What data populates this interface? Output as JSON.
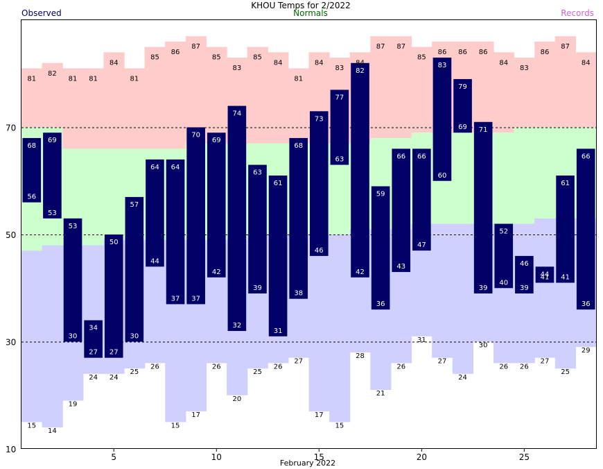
{
  "chart_data": {
    "type": "bar",
    "title": "KHOU Temps for 2/2022",
    "xlabel": "February 2022",
    "legend": {
      "observed": "Observed",
      "normals": "Normals",
      "records": "Records"
    },
    "colors": {
      "record_band": "#ffcccc",
      "normal_band": "#ccffcc",
      "low_band": "#d0d0ff",
      "observed_bar": "#000066",
      "observed_text": "#000066",
      "normals_text": "#006600",
      "records_text": "#cc66cc",
      "gridline": "#000000"
    },
    "ylim": [
      10,
      90
    ],
    "yticks": [
      10,
      30,
      50,
      70
    ],
    "grid": "dashed at 30, 50, 70",
    "xticks": [
      5,
      10,
      15,
      20,
      25
    ],
    "days": [
      1,
      2,
      3,
      4,
      5,
      6,
      7,
      8,
      9,
      10,
      11,
      12,
      13,
      14,
      15,
      16,
      17,
      18,
      19,
      20,
      21,
      22,
      23,
      24,
      25,
      26,
      27,
      28
    ],
    "record_high": [
      81,
      82,
      81,
      81,
      84,
      81,
      85,
      86,
      87,
      85,
      83,
      85,
      84,
      81,
      84,
      83,
      84,
      87,
      87,
      85,
      86,
      86,
      86,
      84,
      83,
      86,
      87,
      84
    ],
    "normal_high": [
      70,
      70,
      66,
      66,
      66,
      66,
      66,
      66,
      67,
      67,
      67,
      67,
      67,
      67,
      67,
      67,
      67,
      68,
      68,
      69,
      69,
      69,
      69,
      69,
      70,
      70,
      70,
      70
    ],
    "normal_low": [
      47,
      48,
      48,
      48,
      49,
      49,
      49,
      49,
      49,
      49,
      49,
      50,
      50,
      50,
      50,
      50,
      51,
      51,
      51,
      52,
      52,
      52,
      52,
      52,
      52,
      53,
      53,
      53
    ],
    "record_low": [
      15,
      14,
      19,
      24,
      24,
      25,
      26,
      15,
      17,
      26,
      20,
      25,
      26,
      27,
      17,
      15,
      28,
      21,
      26,
      31,
      27,
      24,
      30,
      26,
      26,
      27,
      25,
      29
    ],
    "observed_high": [
      68,
      69,
      53,
      34,
      50,
      57,
      64,
      64,
      70,
      69,
      74,
      63,
      61,
      68,
      73,
      77,
      82,
      59,
      66,
      66,
      83,
      79,
      71,
      52,
      46,
      44,
      61,
      66
    ],
    "observed_low": [
      56,
      53,
      30,
      27,
      27,
      30,
      44,
      37,
      37,
      42,
      32,
      39,
      31,
      38,
      46,
      63,
      42,
      36,
      43,
      47,
      60,
      69,
      39,
      40,
      39,
      41,
      41,
      36
    ]
  }
}
